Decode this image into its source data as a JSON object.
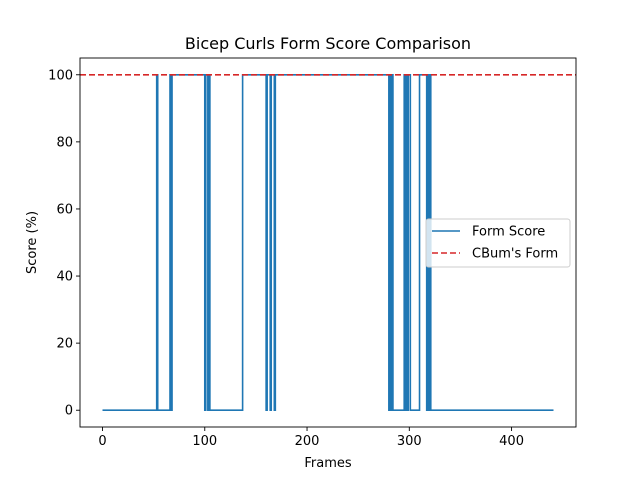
{
  "chart_data": {
    "type": "line",
    "title": "Bicep Curls Form Score Comparison",
    "xlabel": "Frames",
    "ylabel": "Score (%)",
    "xlim": [
      -22,
      463
    ],
    "ylim": [
      -5,
      105
    ],
    "xticks": [
      0,
      100,
      200,
      300,
      400
    ],
    "yticks": [
      0,
      20,
      40,
      60,
      80,
      100
    ],
    "grid": false,
    "legend_position": "center-right",
    "series": [
      {
        "name": "Form Score",
        "color": "#1f77b4",
        "style": "solid",
        "x": [
          0,
          53,
          53,
          54,
          54,
          56,
          56,
          66,
          66,
          67,
          67,
          68,
          68,
          100,
          100,
          101,
          101,
          103,
          103,
          104,
          104,
          105,
          105,
          137,
          137,
          160,
          160,
          161,
          161,
          164,
          164,
          165,
          165,
          168,
          168,
          169,
          169,
          280,
          280,
          281,
          281,
          282,
          282,
          283,
          283,
          284,
          284,
          295,
          295,
          296,
          296,
          297,
          297,
          298,
          298,
          299,
          299,
          301,
          301,
          310,
          310,
          311,
          311,
          317,
          317,
          318,
          318,
          319,
          319,
          320,
          320,
          321,
          321,
          441
        ],
        "y": [
          0,
          0,
          100,
          100,
          0,
          0,
          0,
          0,
          100,
          100,
          0,
          0,
          100,
          100,
          0,
          0,
          100,
          100,
          0,
          0,
          100,
          100,
          0,
          0,
          100,
          100,
          0,
          0,
          100,
          100,
          0,
          0,
          100,
          100,
          0,
          0,
          100,
          100,
          0,
          0,
          100,
          100,
          0,
          0,
          100,
          100,
          0,
          0,
          100,
          100,
          0,
          0,
          100,
          100,
          0,
          0,
          100,
          100,
          0,
          0,
          100,
          100,
          100,
          100,
          0,
          0,
          100,
          100,
          0,
          0,
          100,
          100,
          0,
          0
        ]
      },
      {
        "name": "CBum's Form",
        "color": "#d62728",
        "style": "dashed",
        "y_constant": 100
      }
    ]
  }
}
